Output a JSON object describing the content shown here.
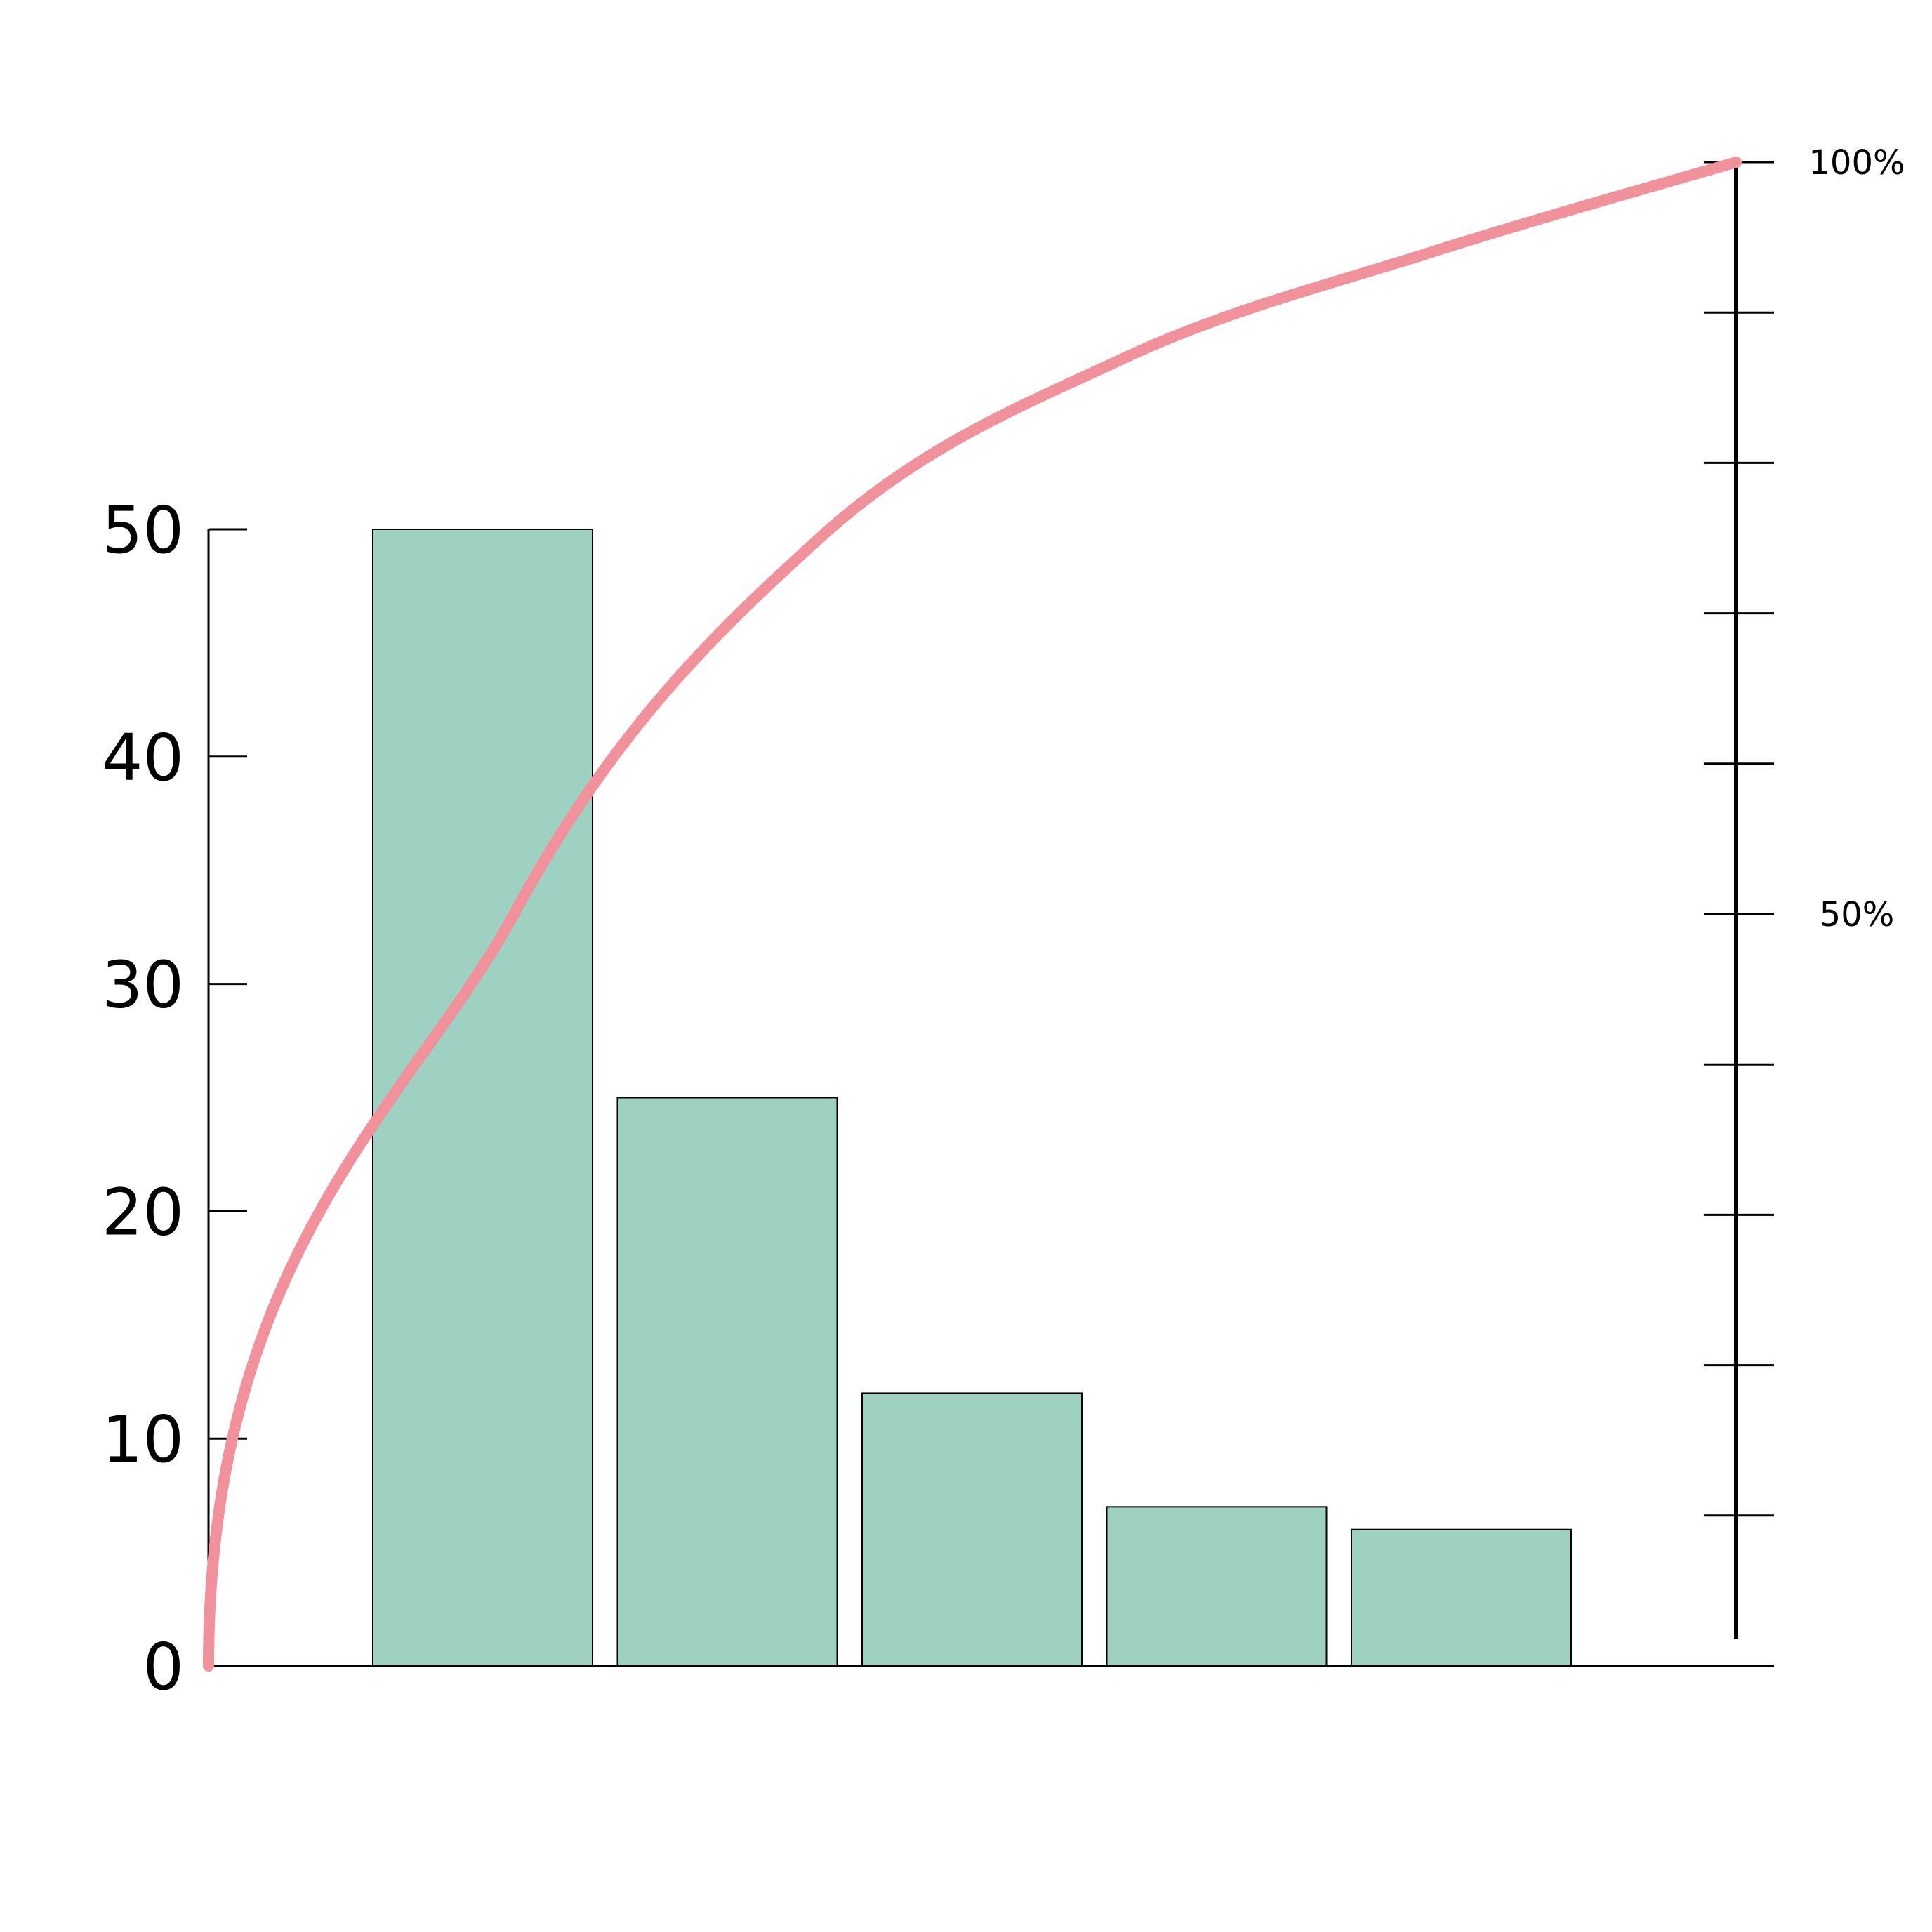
{
  "chart_data": {
    "type": "bar",
    "title": "",
    "xlabel": "",
    "ylabel": "",
    "categories": [
      "",
      "",
      "",
      "",
      ""
    ],
    "values": [
      50,
      25,
      12,
      7,
      6
    ],
    "ylim": [
      0,
      50
    ],
    "left_ticks": [
      "0",
      "10",
      "20",
      "30",
      "40",
      "50"
    ],
    "right_axis": {
      "range": [
        0,
        100
      ],
      "tick_count": 10,
      "labels": [
        {
          "value": 50,
          "text": "50%"
        },
        {
          "value": 100,
          "text": "100%"
        }
      ]
    },
    "cumulative_curve": {
      "type": "line",
      "smooth": true,
      "percent_points": [
        [
          0,
          0
        ],
        [
          1,
          50
        ],
        [
          2,
          75
        ],
        [
          3,
          87
        ],
        [
          4,
          94
        ],
        [
          5,
          100
        ]
      ]
    },
    "colors": {
      "bar_fill": "#9ed1c1",
      "bar_stroke": "#000000",
      "curve": "#f0919b",
      "axis": "#000000"
    },
    "grid": false,
    "legend": "none"
  }
}
